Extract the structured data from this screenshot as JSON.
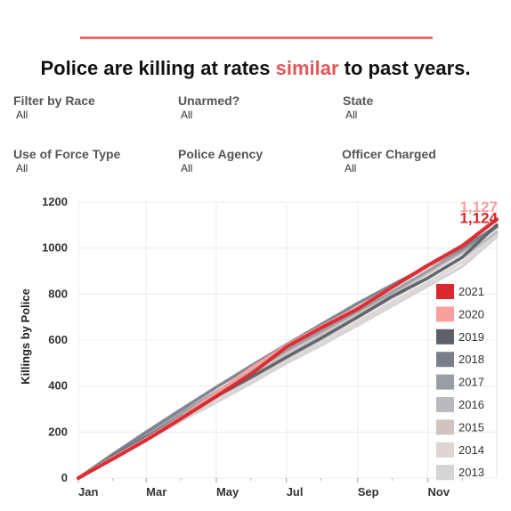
{
  "header": {
    "title_before": "Police are killing at rates ",
    "title_accent": "similar",
    "title_after": " to past years."
  },
  "filters": [
    {
      "label": "Filter by Race",
      "value": "All"
    },
    {
      "label": "Unarmed?",
      "value": "All"
    },
    {
      "label": "State",
      "value": "All"
    },
    {
      "label": "Use of Force Type",
      "value": "All"
    },
    {
      "label": "Police Agency",
      "value": "All"
    },
    {
      "label": "Officer Charged",
      "value": "All"
    }
  ],
  "chart_data": {
    "type": "line",
    "ylabel": "Killings by Police",
    "xlabel": "",
    "ylim": [
      0,
      1200
    ],
    "yticks": [
      0,
      200,
      400,
      600,
      800,
      1000,
      1200
    ],
    "xlim": [
      1,
      365
    ],
    "xticks": [
      {
        "label": "Jan",
        "day": 1
      },
      {
        "label": "Mar",
        "day": 60
      },
      {
        "label": "May",
        "day": 121
      },
      {
        "label": "Jul",
        "day": 182
      },
      {
        "label": "Sep",
        "day": 244
      },
      {
        "label": "Nov",
        "day": 305
      }
    ],
    "grid": true,
    "legend_position": "right",
    "series": [
      {
        "name": "2013",
        "color": "#d4d4d4",
        "x": [
          1,
          30,
          60,
          91,
          121,
          152,
          182,
          213,
          244,
          274,
          305,
          335,
          365
        ],
        "y": [
          0,
          82,
          165,
          250,
          330,
          415,
          500,
          580,
          665,
          750,
          835,
          920,
          1050
        ]
      },
      {
        "name": "2014",
        "color": "#ddd5d1",
        "x": [
          1,
          30,
          60,
          91,
          121,
          152,
          182,
          213,
          244,
          274,
          305,
          335,
          365
        ],
        "y": [
          0,
          88,
          170,
          260,
          345,
          430,
          510,
          595,
          680,
          765,
          850,
          940,
          1060
        ]
      },
      {
        "name": "2015",
        "color": "#cfc4bf",
        "x": [
          1,
          30,
          60,
          91,
          121,
          152,
          182,
          213,
          244,
          274,
          305,
          335,
          365
        ],
        "y": [
          0,
          95,
          185,
          275,
          365,
          455,
          545,
          630,
          715,
          800,
          890,
          980,
          1100
        ]
      },
      {
        "name": "2016",
        "color": "#b8babd",
        "x": [
          1,
          30,
          60,
          91,
          121,
          152,
          182,
          213,
          244,
          274,
          305,
          335,
          365
        ],
        "y": [
          0,
          92,
          180,
          270,
          360,
          445,
          530,
          615,
          700,
          785,
          870,
          960,
          1070
        ]
      },
      {
        "name": "2017",
        "color": "#9a9ea4",
        "x": [
          1,
          30,
          60,
          91,
          121,
          152,
          182,
          213,
          244,
          274,
          305,
          335,
          365
        ],
        "y": [
          0,
          98,
          195,
          285,
          375,
          465,
          555,
          640,
          725,
          810,
          900,
          990,
          1090
        ]
      },
      {
        "name": "2018",
        "color": "#7a808a",
        "x": [
          1,
          30,
          60,
          91,
          121,
          152,
          182,
          213,
          244,
          274,
          305,
          335,
          365
        ],
        "y": [
          0,
          100,
          200,
          300,
          395,
          490,
          580,
          670,
          760,
          840,
          920,
          1000,
          1095
        ]
      },
      {
        "name": "2019",
        "color": "#5c6068",
        "x": [
          1,
          30,
          60,
          91,
          121,
          152,
          182,
          213,
          244,
          274,
          305,
          335,
          365
        ],
        "y": [
          0,
          90,
          178,
          268,
          355,
          440,
          525,
          610,
          700,
          790,
          870,
          960,
          1100
        ]
      },
      {
        "name": "2020",
        "color": "#f7a09e",
        "x": [
          1,
          30,
          60,
          91,
          121,
          152,
          182,
          213,
          244,
          274,
          305,
          335,
          365
        ],
        "y": [
          0,
          85,
          170,
          265,
          370,
          480,
          575,
          660,
          740,
          830,
          920,
          1010,
          1127
        ]
      },
      {
        "name": "2021",
        "color": "#d9282e",
        "x": [
          1,
          30,
          60,
          91,
          121,
          152,
          182,
          213,
          244,
          274,
          305,
          335,
          365
        ],
        "y": [
          0,
          80,
          165,
          260,
          355,
          455,
          570,
          655,
          735,
          830,
          925,
          1010,
          1124
        ]
      }
    ],
    "end_labels": [
      {
        "series": "2020",
        "text": "1,127",
        "color": "#f7a09e"
      },
      {
        "series": "2021",
        "text": "1,124",
        "color": "#d9282e"
      }
    ]
  }
}
